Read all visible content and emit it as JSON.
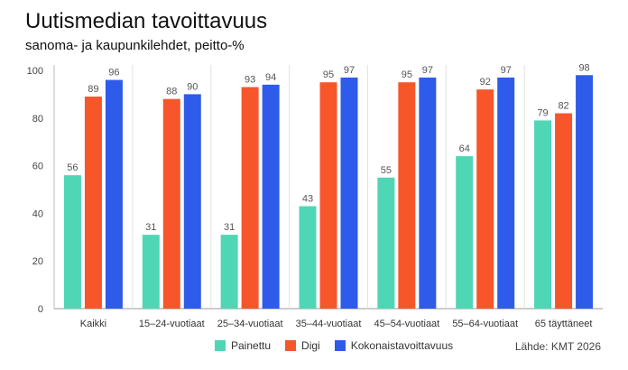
{
  "title": "Uutismedian tavoittavuus",
  "subtitle": "sanoma- ja kaupunkilehdet, peitto-%",
  "source": "Lähde: KMT 2026",
  "colors": {
    "Painettu": "#4fd6b5",
    "Digi": "#f7562a",
    "Kokonaistavoittavuus": "#2f5bea"
  },
  "chart_data": {
    "type": "bar",
    "title": "Uutismedian tavoittavuus",
    "subtitle": "sanoma- ja kaupunkilehdet, peitto-%",
    "categories": [
      "Kaikki",
      "15–24-vuotiaat",
      "25–34-vuotiaat",
      "35–44-vuotiaat",
      "45–54-vuotiaat",
      "55–64-vuotiaat",
      "65 täyttäneet"
    ],
    "series": [
      {
        "name": "Painettu",
        "values": [
          56,
          31,
          31,
          43,
          55,
          64,
          79
        ]
      },
      {
        "name": "Digi",
        "values": [
          89,
          88,
          93,
          95,
          95,
          92,
          82
        ]
      },
      {
        "name": "Kokonaistavoittavuus",
        "values": [
          96,
          90,
          94,
          97,
          97,
          97,
          98
        ]
      }
    ],
    "ylim": [
      0,
      100
    ],
    "yticks": [
      0,
      20,
      40,
      60,
      80,
      100
    ],
    "grid": "vertical-separators",
    "legend": "bottom-center"
  }
}
